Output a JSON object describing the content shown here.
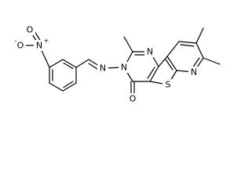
{
  "atoms": [
    {
      "symbol": "O"
    },
    {
      "symbol": "N",
      "charge": "+"
    },
    {
      "symbol": "O",
      "charge": "-"
    },
    {
      "symbol": "N"
    },
    {
      "symbol": "N"
    },
    {
      "symbol": "N"
    },
    {
      "symbol": "O"
    },
    {
      "symbol": "S"
    },
    {
      "symbol": "N"
    }
  ]
}
